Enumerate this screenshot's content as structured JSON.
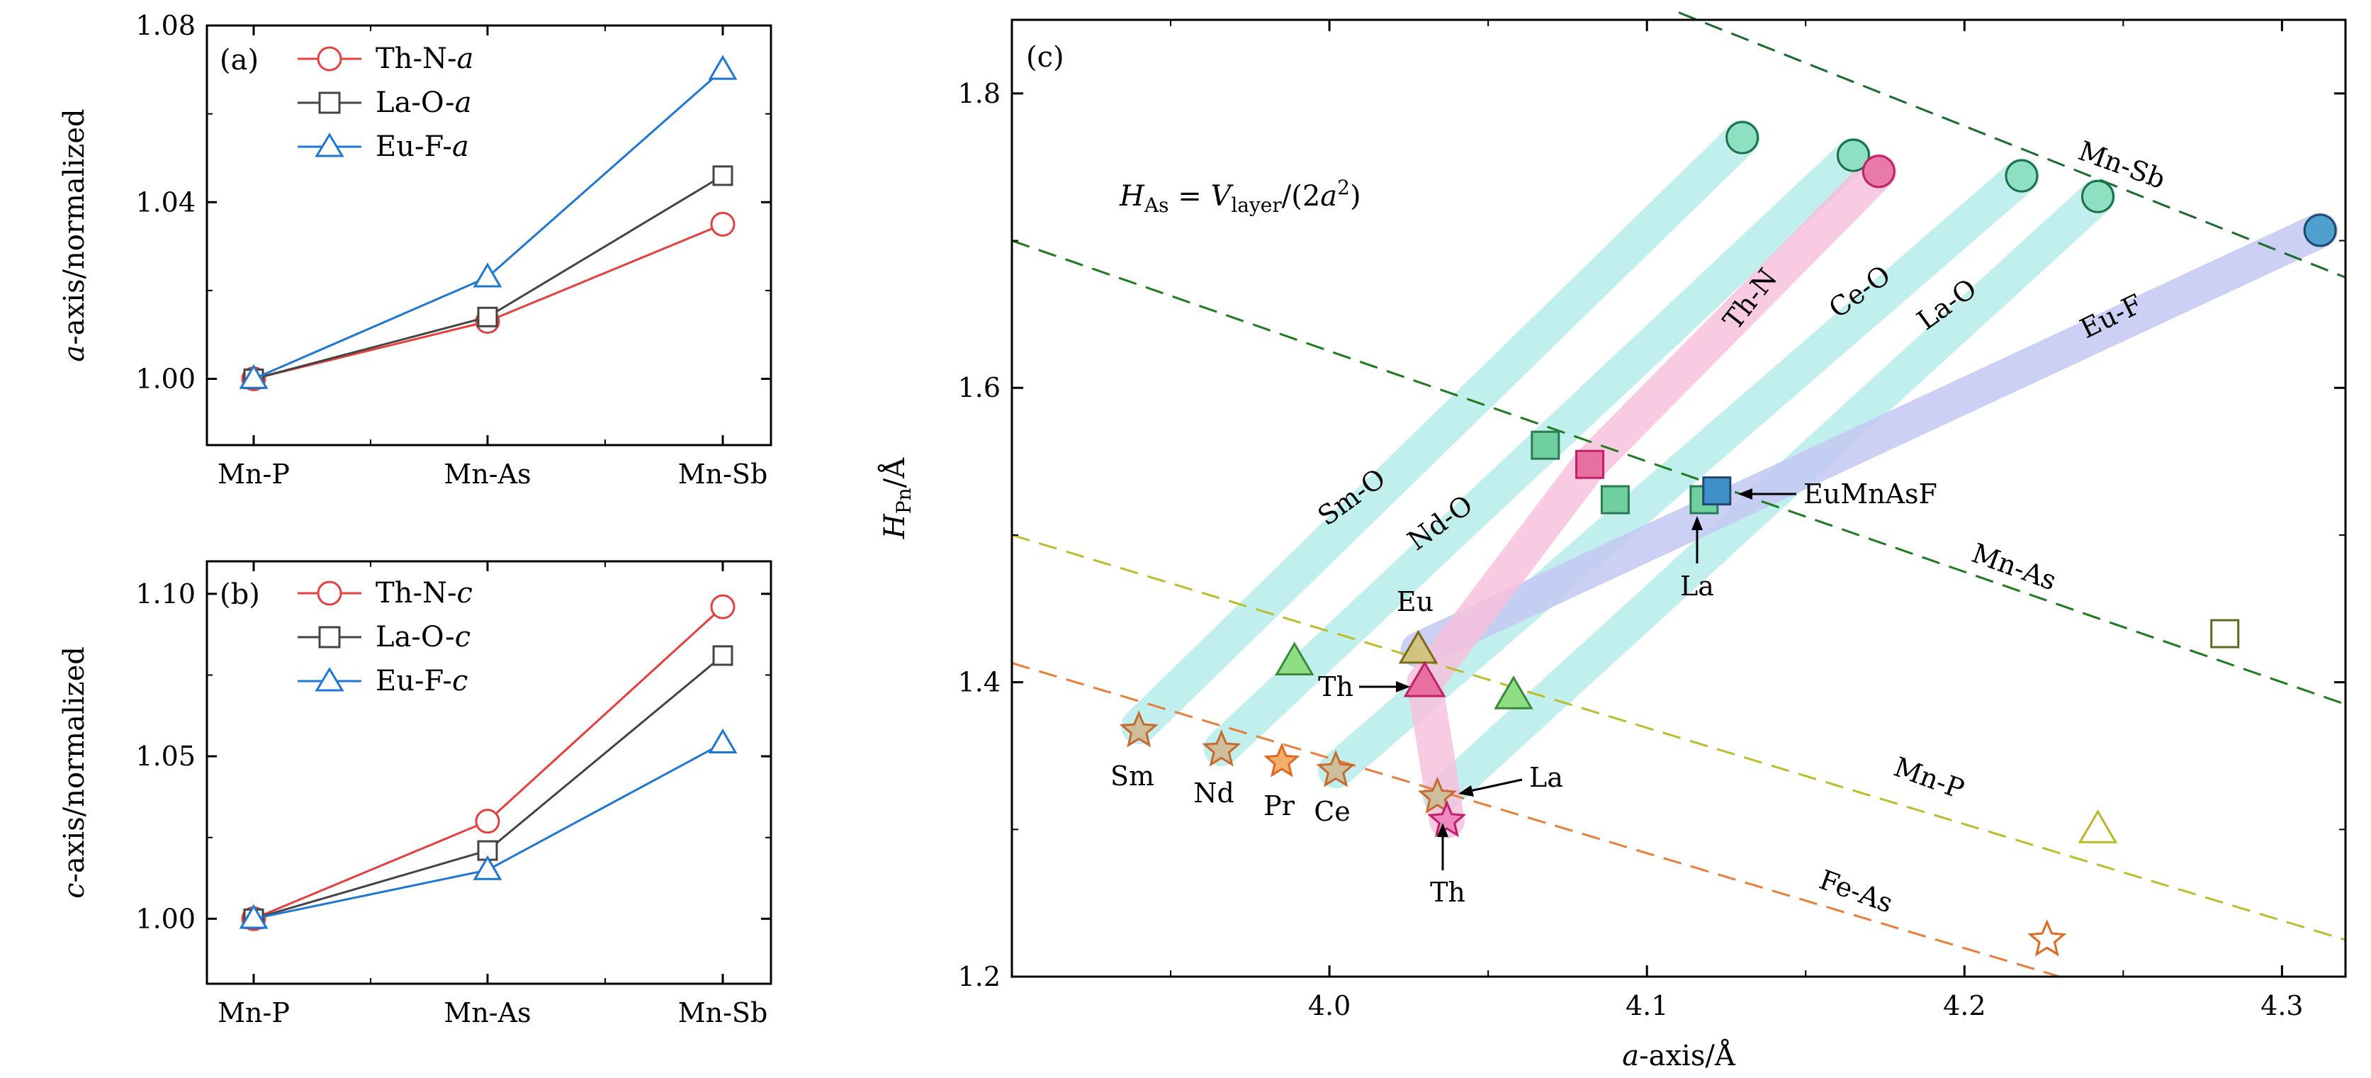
{
  "chart_data": [
    {
      "panel": "(a)",
      "type": "line",
      "categories": [
        "Mn-P",
        "Mn-As",
        "Mn-Sb"
      ],
      "ylabel_parts": [
        "a",
        "-axis/normalized"
      ],
      "ylim": [
        0.985,
        1.08
      ],
      "yticks": [
        1.0,
        1.04,
        1.08
      ],
      "ytick_labels": [
        "1.00",
        "1.04",
        "1.08"
      ],
      "series": [
        {
          "name_parts": [
            "Th-N-",
            "a"
          ],
          "marker": "circle",
          "color": "#e5403f",
          "values": [
            1.0,
            1.013,
            1.035
          ]
        },
        {
          "name_parts": [
            "La-O-",
            "a"
          ],
          "marker": "square",
          "color": "#444444",
          "values": [
            1.0,
            1.014,
            1.046
          ]
        },
        {
          "name_parts": [
            "Eu-F-",
            "a"
          ],
          "marker": "triangle",
          "color": "#1f77d4",
          "values": [
            1.0,
            1.023,
            1.07
          ]
        }
      ]
    },
    {
      "panel": "(b)",
      "type": "line",
      "categories": [
        "Mn-P",
        "Mn-As",
        "Mn-Sb"
      ],
      "ylabel_parts": [
        "c",
        "-axis/normalized"
      ],
      "ylim": [
        0.98,
        1.11
      ],
      "yticks": [
        1.0,
        1.05,
        1.1
      ],
      "ytick_labels": [
        "1.00",
        "1.05",
        "1.10"
      ],
      "series": [
        {
          "name_parts": [
            "Th-N-",
            "c"
          ],
          "marker": "circle",
          "color": "#e5403f",
          "values": [
            1.0,
            1.03,
            1.096
          ]
        },
        {
          "name_parts": [
            "La-O-",
            "c"
          ],
          "marker": "square",
          "color": "#444444",
          "values": [
            1.0,
            1.021,
            1.081
          ]
        },
        {
          "name_parts": [
            "Eu-F-",
            "c"
          ],
          "marker": "triangle",
          "color": "#1f77d4",
          "values": [
            1.0,
            1.015,
            1.054
          ]
        }
      ]
    },
    {
      "panel": "(c)",
      "type": "scatter",
      "xlabel_parts": [
        "a",
        "-axis/Å"
      ],
      "ylabel_parts": [
        "H",
        "Pn",
        "/Å"
      ],
      "xlim": [
        3.9,
        4.32
      ],
      "ylim": [
        1.2,
        1.85
      ],
      "xticks": [
        4.0,
        4.1,
        4.2,
        4.3
      ],
      "xtick_labels": [
        "4.0",
        "4.1",
        "4.2",
        "4.3"
      ],
      "yticks": [
        1.2,
        1.4,
        1.6,
        1.8
      ],
      "ytick_labels": [
        "1.2",
        "1.4",
        "1.6",
        "1.8"
      ],
      "formula": {
        "lhs_main": "H",
        "lhs_sub": "As",
        "eq": " = ",
        "v": "V",
        "v_sub": "layer",
        "rest": "/(2",
        "a": "a",
        "sq": "2",
        "close": ")"
      },
      "bands": [
        {
          "name": "Sm-O",
          "color": "#bdeeed",
          "x": [
            3.94,
            4.13
          ],
          "y": [
            1.37,
            1.77
          ],
          "label": "Sm-O"
        },
        {
          "name": "Nd-O",
          "color": "#bdeeed",
          "x": [
            3.966,
            4.165
          ],
          "y": [
            1.355,
            1.758
          ],
          "label": "Nd-O"
        },
        {
          "name": "Ce-O",
          "color": "#bdeeed",
          "x": [
            4.002,
            4.218
          ],
          "y": [
            1.34,
            1.744
          ],
          "label": "Ce-O"
        },
        {
          "name": "La-O",
          "color": "#bdeeed",
          "x": [
            4.035,
            4.242
          ],
          "y": [
            1.322,
            1.73
          ],
          "label": "La-O"
        },
        {
          "name": "Eu-F",
          "color": "#c4c8f3",
          "x": [
            4.028,
            4.312
          ],
          "y": [
            1.422,
            1.707
          ],
          "label": "Eu-F"
        },
        {
          "name": "Th-N",
          "color": "#f8c0dc",
          "x": [
            4.037,
            4.03,
            4.082,
            4.173
          ],
          "y": [
            1.306,
            1.4,
            1.548,
            1.747
          ],
          "label": "Th-N"
        }
      ],
      "ref_lines": [
        {
          "label": "Mn-Sb",
          "color": "#1a6b2e",
          "x": [
            4.11,
            4.32
          ],
          "y": [
            1.855,
            1.675
          ]
        },
        {
          "label": "Mn-As",
          "color": "#1e7a1e",
          "x": [
            3.9,
            4.32
          ],
          "y": [
            1.7,
            1.385
          ]
        },
        {
          "label": "Mn-P",
          "color": "#bcbc2c",
          "x": [
            3.9,
            4.32
          ],
          "y": [
            1.5,
            1.225
          ]
        },
        {
          "label": "Fe-As",
          "color": "#e97d3a",
          "x": [
            3.9,
            4.23
          ],
          "y": [
            1.413,
            1.2
          ]
        }
      ],
      "points": {
        "circles_green": [
          [
            4.13,
            1.77
          ],
          [
            4.165,
            1.758
          ],
          [
            4.218,
            1.744
          ],
          [
            4.242,
            1.73
          ]
        ],
        "circle_blue": [
          [
            4.312,
            1.707
          ]
        ],
        "circle_pink": [
          [
            4.173,
            1.747
          ]
        ],
        "squares_green": [
          [
            4.068,
            1.561
          ],
          [
            4.09,
            1.524
          ],
          [
            4.118,
            1.524
          ]
        ],
        "square_pink": [
          [
            4.082,
            1.548
          ]
        ],
        "square_blue": [
          [
            4.122,
            1.53
          ]
        ],
        "square_open": [
          [
            4.282,
            1.433
          ]
        ],
        "triangles_green": [
          [
            3.989,
            1.414
          ],
          [
            4.058,
            1.391
          ]
        ],
        "triangle_olive": [
          [
            4.028,
            1.422
          ]
        ],
        "triangle_pink": [
          [
            4.03,
            1.4
          ]
        ],
        "triangle_open": [
          [
            4.242,
            1.3
          ]
        ],
        "stars_tan": [
          [
            3.94,
            1.367
          ],
          [
            3.966,
            1.354
          ],
          [
            4.002,
            1.34
          ],
          [
            4.034,
            1.322
          ]
        ],
        "star_pr": [
          [
            3.985,
            1.346
          ]
        ],
        "star_pink": [
          [
            4.037,
            1.306
          ]
        ],
        "star_open": [
          [
            4.226,
            1.225
          ]
        ]
      },
      "annotations": [
        {
          "text": "EuMnAsF"
        },
        {
          "text": "La"
        },
        {
          "text": "Eu"
        },
        {
          "text": "Th"
        },
        {
          "text": "La"
        },
        {
          "text": "Th"
        },
        {
          "text": "Sm"
        },
        {
          "text": "Nd"
        },
        {
          "text": "Pr"
        },
        {
          "text": "Ce"
        }
      ]
    }
  ]
}
